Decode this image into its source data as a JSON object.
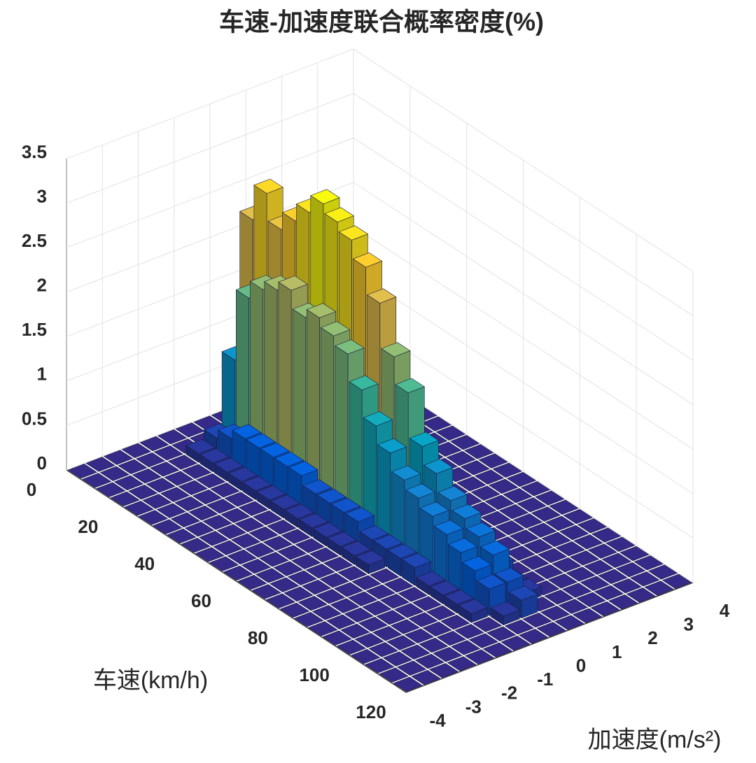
{
  "chart_data": {
    "type": "bar3d",
    "title": "车速-加速度联合概率密度(%)",
    "xlabel": "车速(km/h)",
    "ylabel": "加速度(m/s²)",
    "x": [
      2.5,
      7.5,
      12.5,
      17.5,
      22.5,
      27.5,
      32.5,
      37.5,
      42.5,
      47.5,
      52.5,
      57.5,
      62.5,
      67.5,
      72.5,
      77.5,
      82.5,
      87.5,
      92.5,
      97.5,
      102.5,
      107.5,
      112.5,
      117.5
    ],
    "y": [
      -3.75,
      -3.25,
      -2.75,
      -2.25,
      -1.75,
      -1.25,
      -0.75,
      -0.25,
      0.25,
      0.75,
      1.25,
      1.75,
      2.25,
      2.75,
      3.25,
      3.75
    ],
    "values": [
      [
        0,
        0,
        0,
        0,
        0,
        0,
        0,
        0,
        0,
        0,
        0,
        0,
        0,
        0,
        0,
        0
      ],
      [
        0,
        0,
        0,
        0,
        0,
        0,
        0,
        0,
        0,
        0,
        0,
        0,
        0,
        0,
        0,
        0
      ],
      [
        0,
        0,
        0,
        0,
        0,
        0.1,
        0.2,
        1.0,
        2.5,
        0.9,
        0.1,
        0,
        0,
        0,
        0,
        0
      ],
      [
        0,
        0,
        0,
        0,
        0,
        0.1,
        0.3,
        1.8,
        2.9,
        1.0,
        0.1,
        0,
        0,
        0,
        0,
        0
      ],
      [
        0,
        0,
        0,
        0,
        0,
        0.1,
        0.4,
        2.0,
        2.6,
        0.9,
        0.1,
        0,
        0,
        0,
        0,
        0
      ],
      [
        0,
        0,
        0,
        0,
        0,
        0.1,
        0.4,
        2.1,
        2.8,
        0.8,
        0.1,
        0,
        0,
        0,
        0,
        0
      ],
      [
        0,
        0,
        0,
        0,
        0,
        0.1,
        0.4,
        2.2,
        3.0,
        0.8,
        0.1,
        0,
        0,
        0,
        0,
        0
      ],
      [
        0,
        0,
        0,
        0,
        0,
        0.1,
        0.4,
        2.0,
        3.2,
        0.7,
        0.1,
        0,
        0,
        0,
        0,
        0
      ],
      [
        0,
        0,
        0,
        0,
        0,
        0.1,
        0.4,
        2.1,
        3.1,
        0.7,
        0.1,
        0,
        0,
        0,
        0,
        0
      ],
      [
        0,
        0,
        0,
        0,
        0,
        0.1,
        0.3,
        2.0,
        3.0,
        0.6,
        0.1,
        0,
        0,
        0,
        0,
        0
      ],
      [
        0,
        0,
        0,
        0,
        0,
        0.1,
        0.3,
        1.9,
        2.8,
        0.6,
        0.1,
        0,
        0,
        0,
        0,
        0
      ],
      [
        0,
        0,
        0,
        0,
        0,
        0.1,
        0.3,
        1.6,
        2.5,
        0.5,
        0.1,
        0,
        0,
        0,
        0,
        0
      ],
      [
        0,
        0,
        0,
        0,
        0,
        0.1,
        0.3,
        1.3,
        2.0,
        0.5,
        0.1,
        0,
        0,
        0,
        0,
        0
      ],
      [
        0,
        0,
        0,
        0,
        0,
        0.1,
        0.2,
        1.1,
        1.7,
        0.4,
        0.1,
        0,
        0,
        0,
        0,
        0
      ],
      [
        0,
        0,
        0,
        0,
        0,
        0.1,
        0.2,
        0.9,
        1.2,
        0.4,
        0.1,
        0,
        0,
        0,
        0,
        0
      ],
      [
        0,
        0,
        0,
        0,
        0,
        0,
        0.2,
        0.8,
        1.0,
        0.3,
        0.1,
        0,
        0,
        0,
        0,
        0
      ],
      [
        0,
        0,
        0,
        0,
        0,
        0,
        0.2,
        0.7,
        0.8,
        0.3,
        0,
        0,
        0,
        0,
        0,
        0
      ],
      [
        0,
        0,
        0,
        0,
        0,
        0,
        0.1,
        0.6,
        0.7,
        0.2,
        0,
        0,
        0,
        0,
        0,
        0
      ],
      [
        0,
        0,
        0,
        0,
        0,
        0,
        0.1,
        0.5,
        0.6,
        0.2,
        0,
        0,
        0,
        0,
        0,
        0
      ],
      [
        0,
        0,
        0,
        0,
        0,
        0,
        0.1,
        0.4,
        0.5,
        0.1,
        0,
        0,
        0,
        0,
        0,
        0
      ],
      [
        0,
        0,
        0,
        0,
        0,
        0,
        0.1,
        0.3,
        0.3,
        0.1,
        0,
        0,
        0,
        0,
        0,
        0
      ],
      [
        0,
        0,
        0,
        0,
        0,
        0,
        0,
        0.1,
        0.2,
        0,
        0,
        0,
        0,
        0,
        0,
        0
      ],
      [
        0,
        0,
        0,
        0,
        0,
        0,
        0,
        0,
        0,
        0,
        0,
        0,
        0,
        0,
        0,
        0
      ],
      [
        0,
        0,
        0,
        0,
        0,
        0,
        0,
        0,
        0,
        0,
        0,
        0,
        0,
        0,
        0,
        0
      ]
    ],
    "xlim": [
      0,
      120
    ],
    "xticks": [
      0,
      20,
      40,
      60,
      80,
      100,
      120
    ],
    "ylim": [
      -4,
      4
    ],
    "yticks": [
      -4,
      -3,
      -2,
      -1,
      0,
      1,
      2,
      3,
      4
    ],
    "zlim": [
      0,
      3.5
    ],
    "zticks": [
      0,
      0.5,
      1,
      1.5,
      2,
      2.5,
      3,
      3.5
    ],
    "grid": true,
    "colormap": [
      "#352a87",
      "#0363e1",
      "#1485d4",
      "#06a7c6",
      "#38b99e",
      "#92bf73",
      "#d9ba56",
      "#fcce2e",
      "#f9fb0e"
    ]
  }
}
